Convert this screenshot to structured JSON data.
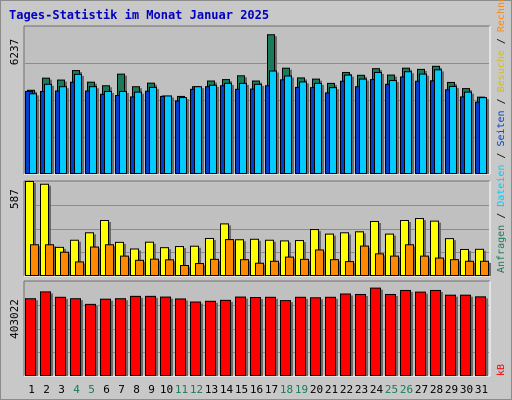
{
  "title": "Tages-Statistik im Monat Januar 2025",
  "colors": {
    "background": "#c8c8c8",
    "panel": "#c0c0c0",
    "anfragen": "#1a7a5a",
    "dateien": "#00ccff",
    "seiten": "#003fd0",
    "besuche": "#ffff00",
    "rechner": "#ff8800",
    "kb": "#ff0000",
    "weekend_label": "#1a7a5a",
    "title": "#0000c0"
  },
  "chart_data": {
    "type": "bar",
    "title": "Tages-Statistik im Monat Januar 2025",
    "categories": [
      "1",
      "2",
      "3",
      "4",
      "5",
      "6",
      "7",
      "8",
      "9",
      "10",
      "11",
      "12",
      "13",
      "14",
      "15",
      "16",
      "17",
      "18",
      "19",
      "20",
      "21",
      "22",
      "23",
      "24",
      "25",
      "26",
      "27",
      "28",
      "29",
      "30",
      "31"
    ],
    "weekend_days": [
      "4",
      "5",
      "11",
      "12",
      "18",
      "19",
      "25",
      "26"
    ],
    "grid": true,
    "panels": [
      {
        "max_label": "6237",
        "ylim": [
          0,
          6237
        ],
        "series": [
          {
            "name": "Anfragen",
            "values": [
              3550,
              4060,
              3980,
              4380,
              3890,
              3740,
              4230,
              3700,
              3850,
              3310,
              3290,
              3700,
              3940,
              4000,
              4160,
              3940,
              5890,
              4480,
              4070,
              4020,
              3840,
              4300,
              4180,
              4460,
              4190,
              4480,
              4430,
              4560,
              3880,
              3620,
              3260
            ]
          },
          {
            "name": "Dateien",
            "values": [
              3400,
              3800,
              3700,
              4220,
              3700,
              3500,
              3500,
              3470,
              3670,
              3310,
              3240,
              3700,
              3760,
              3840,
              3840,
              3800,
              4360,
              4150,
              3900,
              3840,
              3660,
              4190,
              4020,
              4300,
              3960,
              4330,
              4230,
              4410,
              3710,
              3470,
              3240
            ]
          },
          {
            "name": "Seiten",
            "values": [
              3500,
              3500,
              3520,
              3890,
              3520,
              3380,
              3330,
              3270,
              3510,
              3290,
              3100,
              3590,
              3700,
              3740,
              3590,
              3600,
              3740,
              3990,
              3670,
              3660,
              3440,
              3930,
              3700,
              4000,
              3800,
              4110,
              3930,
              3950,
              3570,
              3270,
              3050
            ]
          }
        ]
      },
      {
        "max_label": "587",
        "ylim": [
          0,
          587
        ],
        "series": [
          {
            "name": "Besuche",
            "values": [
              587,
              570,
              180,
              224,
              270,
              346,
              211,
              170,
              212,
              178,
              185,
              187,
              235,
              325,
              227,
              230,
              224,
              220,
              222,
              290,
              262,
              270,
              276,
              340,
              262,
              346,
              358,
              342,
              234,
              167,
              168
            ]
          },
          {
            "name": "Rechner",
            "values": [
              196,
              196,
              150,
              90,
              182,
              196,
              126,
              100,
              107,
              103,
              68,
              80,
              106,
              228,
              104,
              82,
              94,
              120,
              106,
              164,
              104,
              92,
              188,
              140,
              126,
              196,
              126,
              114,
              104,
              94,
              94
            ]
          }
        ]
      },
      {
        "max_label": "403022",
        "ylim": [
          0,
          403022
        ],
        "series": [
          {
            "name": "kB",
            "values": [
              330000,
              359000,
              336000,
              330000,
              306000,
              328000,
              330000,
              340000,
              340000,
              337000,
              329000,
              316000,
              319000,
              323000,
              337000,
              335000,
              336000,
              322000,
              336000,
              334000,
              336000,
              350000,
              348000,
              375000,
              348000,
              365000,
              358000,
              365000,
              345000,
              345000,
              338000
            ]
          }
        ]
      }
    ]
  },
  "right_legend": [
    {
      "text": "Anfragen",
      "color": "#1a7a5a"
    },
    {
      "text": " / ",
      "color": "#000000"
    },
    {
      "text": "Dateien",
      "color": "#00ccff"
    },
    {
      "text": " / ",
      "color": "#000000"
    },
    {
      "text": "Seiten",
      "color": "#003fd0"
    },
    {
      "text": " / ",
      "color": "#000000"
    },
    {
      "text": "Besuche",
      "color": "#d8c000"
    },
    {
      "text": " / ",
      "color": "#000000"
    },
    {
      "text": "Rechner",
      "color": "#ff8800"
    },
    {
      "text": "kB",
      "color": "#ff0000"
    }
  ]
}
